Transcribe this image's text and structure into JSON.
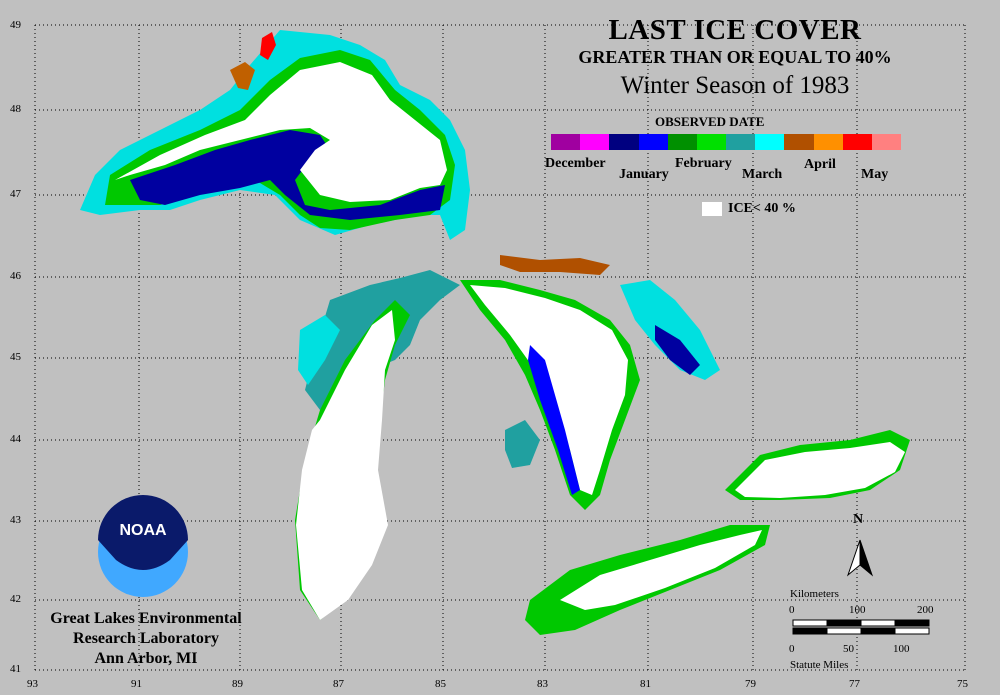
{
  "title": {
    "line1": "LAST ICE COVER",
    "line2": "GREATER THAN OR EQUAL TO 40%",
    "line3": "Winter Season of 1983"
  },
  "legend": {
    "observed_label": "OBSERVED DATE",
    "months": [
      "December",
      "January",
      "February",
      "March",
      "April",
      "May"
    ],
    "colors": [
      "#a000a0",
      "#ff00ff",
      "#000080",
      "#0000ff",
      "#009000",
      "#00e000",
      "#20a0a0",
      "#00ffff",
      "#b05000",
      "#ff9000",
      "#ff0000",
      "#ff8080"
    ],
    "ice_label": "ICE< 40 %",
    "ice_color": "#ffffff"
  },
  "latitude_labels": [
    "49",
    "48",
    "47",
    "46",
    "45",
    "44",
    "43",
    "42",
    "41"
  ],
  "longitude_labels": [
    "93",
    "91",
    "89",
    "87",
    "85",
    "83",
    "81",
    "79",
    "77",
    "75"
  ],
  "organization": {
    "logo_text": "NOAA",
    "line1": "Great Lakes Environmental",
    "line2": "Research Laboratory",
    "line3": "Ann Arbor, MI"
  },
  "north_arrow": {
    "label": "N"
  },
  "scale": {
    "km_label": "Kilometers",
    "km_ticks": [
      "0",
      "100",
      "200"
    ],
    "mi_label": "Statute Miles",
    "mi_ticks": [
      "0",
      "50",
      "100"
    ]
  }
}
